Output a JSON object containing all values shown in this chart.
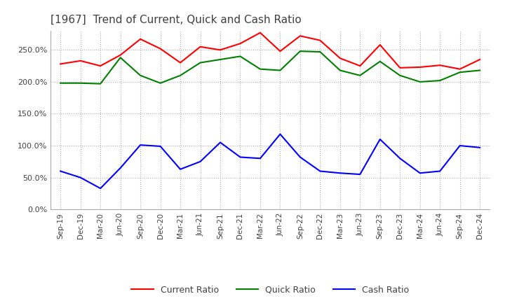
{
  "title": "[1967]  Trend of Current, Quick and Cash Ratio",
  "title_fontsize": 11,
  "title_color": "#404040",
  "x_labels": [
    "Sep-19",
    "Dec-19",
    "Mar-20",
    "Jun-20",
    "Sep-20",
    "Dec-20",
    "Mar-21",
    "Jun-21",
    "Sep-21",
    "Dec-21",
    "Mar-22",
    "Jun-22",
    "Sep-22",
    "Dec-22",
    "Mar-23",
    "Jun-23",
    "Sep-23",
    "Dec-23",
    "Mar-24",
    "Jun-24",
    "Sep-24",
    "Dec-24"
  ],
  "current_ratio": [
    228,
    233,
    225,
    242,
    267,
    252,
    230,
    255,
    250,
    260,
    277,
    248,
    272,
    265,
    237,
    225,
    258,
    222,
    223,
    226,
    220,
    235
  ],
  "quick_ratio": [
    198,
    198,
    197,
    238,
    210,
    198,
    210,
    230,
    235,
    240,
    220,
    218,
    248,
    247,
    218,
    210,
    232,
    210,
    200,
    202,
    215,
    218
  ],
  "cash_ratio": [
    60,
    50,
    33,
    65,
    101,
    99,
    63,
    75,
    105,
    82,
    80,
    118,
    82,
    60,
    57,
    55,
    110,
    80,
    57,
    60,
    100,
    97
  ],
  "current_color": "#ff0000",
  "quick_color": "#008000",
  "cash_color": "#0000ff",
  "bg_color": "#ffffff",
  "plot_bg_color": "#ffffff",
  "grid_color": "#aaaaaa",
  "ylim": [
    0,
    280
  ],
  "yticks": [
    0,
    50,
    100,
    150,
    200,
    250
  ],
  "legend_labels": [
    "Current Ratio",
    "Quick Ratio",
    "Cash Ratio"
  ]
}
